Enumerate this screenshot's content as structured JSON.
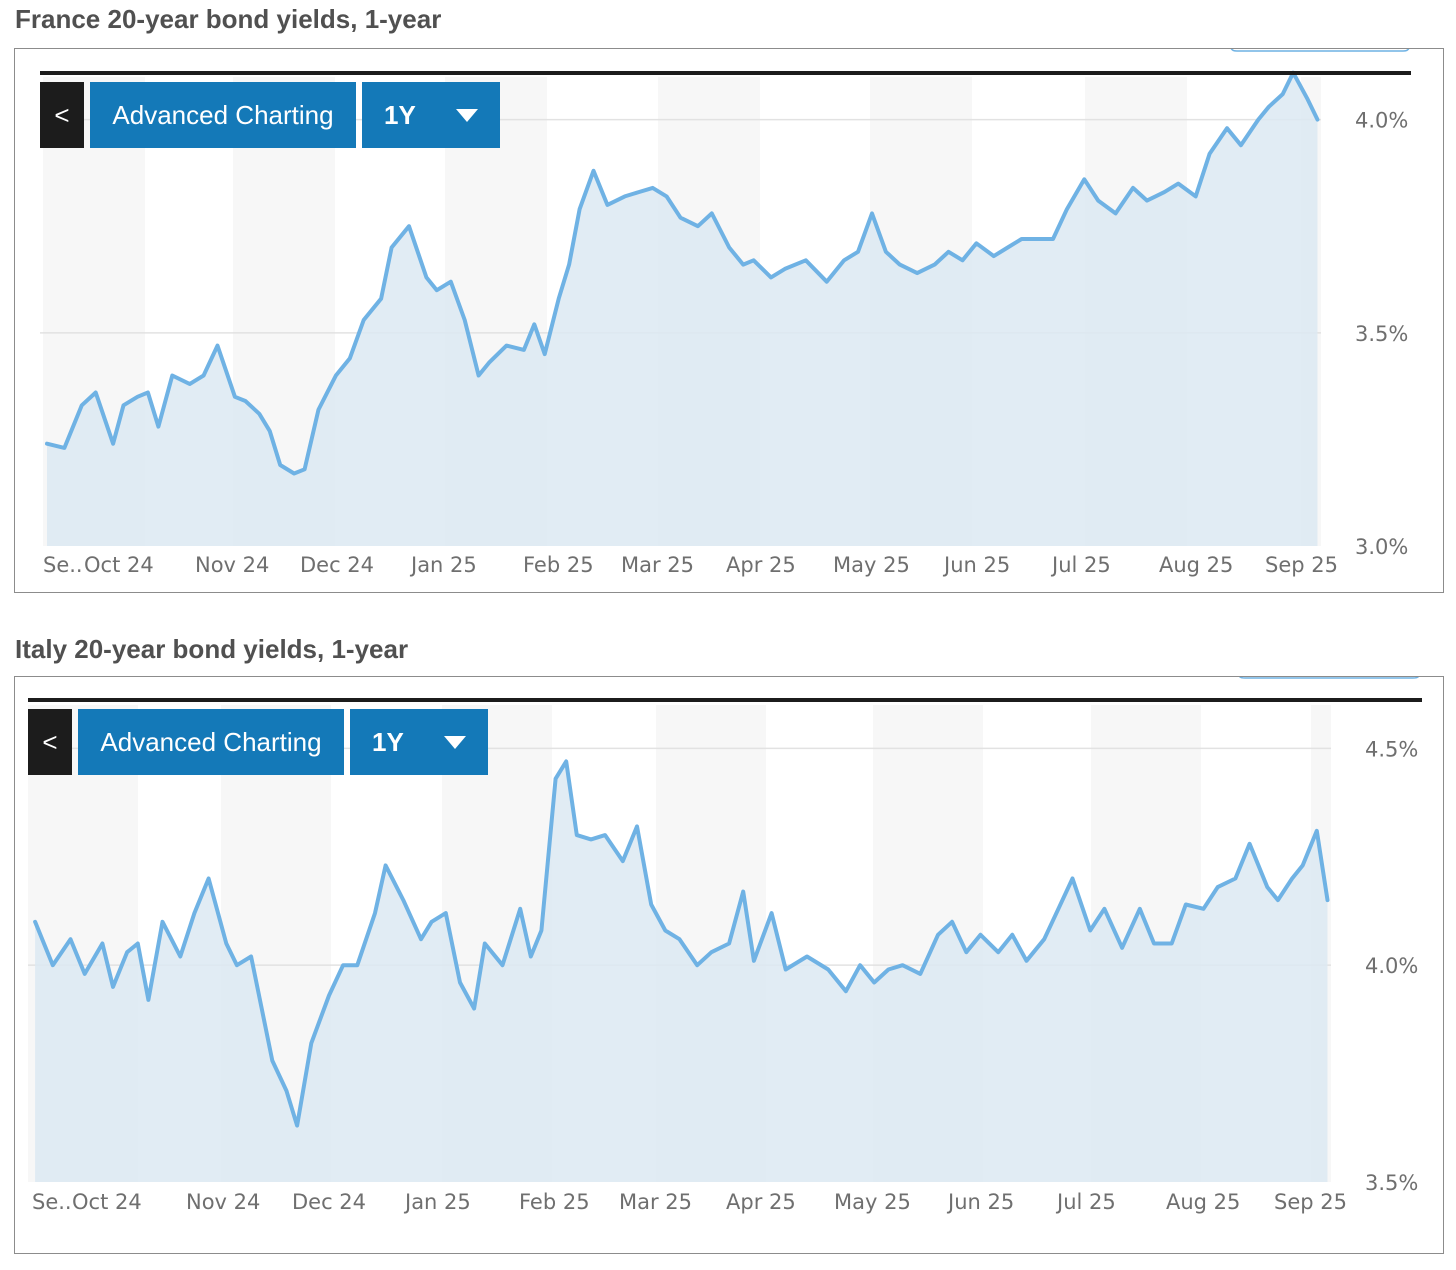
{
  "charts": [
    {
      "title": "France 20-year bond yields, 1-year",
      "toolbar": {
        "back_icon": "chevron-left-icon",
        "back_label": "<",
        "advanced_label": "Advanced Charting",
        "range_label": "1Y",
        "dropdown_icon": "caret-down-icon"
      },
      "colors": {
        "line": "#6fb2e4",
        "fill": "#dce9f2",
        "band": "#f7f7f7",
        "grid": "#e2e2e2",
        "button": "#1479b8",
        "back_button": "#1c1c1c"
      },
      "chart_data": {
        "type": "area",
        "title": "France 20-year bond yields, 1-year",
        "xlabel": "",
        "ylabel": "",
        "x_tick_labels": [
          "Se..",
          "Oct 24",
          "Nov 24",
          "Dec 24",
          "Jan 25",
          "Feb 25",
          "Mar 25",
          "Apr 25",
          "May 25",
          "Jun 25",
          "Jul 25",
          "Aug 25",
          "Sep 25"
        ],
        "y_ticks": [
          3.0,
          3.5,
          4.0
        ],
        "y_tick_labels": [
          "3.0%",
          "3.5%",
          "4.0%"
        ],
        "ylim": [
          3.0,
          4.1
        ],
        "grid": true,
        "series": [
          {
            "x": [
              "2024-09-20",
              "2024-09-25",
              "2024-09-30",
              "2024-10-04",
              "2024-10-09",
              "2024-10-12",
              "2024-10-16",
              "2024-10-19",
              "2024-10-22",
              "2024-10-26",
              "2024-10-31",
              "2024-11-04",
              "2024-11-08",
              "2024-11-13",
              "2024-11-16",
              "2024-11-20",
              "2024-11-23",
              "2024-11-26",
              "2024-11-30",
              "2024-12-03",
              "2024-12-07",
              "2024-12-12",
              "2024-12-16",
              "2024-12-20",
              "2024-12-25",
              "2024-12-28",
              "2025-01-02",
              "2025-01-07",
              "2025-01-10",
              "2025-01-14",
              "2025-01-18",
              "2025-01-22",
              "2025-01-25",
              "2025-01-30",
              "2025-02-04",
              "2025-02-07",
              "2025-02-10",
              "2025-02-14",
              "2025-02-17",
              "2025-02-20",
              "2025-02-24",
              "2025-02-28",
              "2025-03-05",
              "2025-03-09",
              "2025-03-13",
              "2025-03-17",
              "2025-03-21",
              "2025-03-26",
              "2025-03-30",
              "2025-04-04",
              "2025-04-08",
              "2025-04-11",
              "2025-04-16",
              "2025-04-20",
              "2025-04-26",
              "2025-05-02",
              "2025-05-07",
              "2025-05-11",
              "2025-05-15",
              "2025-05-19",
              "2025-05-23",
              "2025-05-28",
              "2025-06-02",
              "2025-06-06",
              "2025-06-10",
              "2025-06-14",
              "2025-06-19",
              "2025-06-23",
              "2025-06-27",
              "2025-07-02",
              "2025-07-06",
              "2025-07-10",
              "2025-07-15",
              "2025-07-19",
              "2025-07-24",
              "2025-07-29",
              "2025-08-02",
              "2025-08-07",
              "2025-08-11",
              "2025-08-16",
              "2025-08-20",
              "2025-08-25",
              "2025-08-29",
              "2025-09-03",
              "2025-09-06",
              "2025-09-10",
              "2025-09-13",
              "2025-09-17",
              "2025-09-20"
            ],
            "values": [
              3.24,
              3.23,
              3.33,
              3.36,
              3.24,
              3.33,
              3.35,
              3.36,
              3.28,
              3.4,
              3.38,
              3.4,
              3.47,
              3.35,
              3.34,
              3.31,
              3.27,
              3.19,
              3.17,
              3.18,
              3.32,
              3.4,
              3.44,
              3.53,
              3.58,
              3.7,
              3.75,
              3.63,
              3.6,
              3.62,
              3.53,
              3.4,
              3.43,
              3.47,
              3.46,
              3.52,
              3.45,
              3.58,
              3.66,
              3.79,
              3.88,
              3.8,
              3.82,
              3.83,
              3.84,
              3.82,
              3.77,
              3.75,
              3.78,
              3.7,
              3.66,
              3.67,
              3.63,
              3.65,
              3.67,
              3.62,
              3.67,
              3.69,
              3.78,
              3.69,
              3.66,
              3.64,
              3.66,
              3.69,
              3.67,
              3.71,
              3.68,
              3.7,
              3.72,
              3.72,
              3.72,
              3.79,
              3.86,
              3.81,
              3.78,
              3.84,
              3.81,
              3.83,
              3.85,
              3.82,
              3.92,
              3.98,
              3.94,
              4.0,
              4.03,
              4.06,
              4.11,
              4.05,
              4.0
            ]
          }
        ]
      }
    },
    {
      "title": "Italy 20-year bond yields, 1-year",
      "toolbar": {
        "back_icon": "chevron-left-icon",
        "back_label": "<",
        "advanced_label": "Advanced Charting",
        "range_label": "1Y",
        "dropdown_icon": "caret-down-icon"
      },
      "colors": {
        "line": "#6fb2e4",
        "fill": "#dce9f2",
        "band": "#f7f7f7",
        "grid": "#e2e2e2",
        "button": "#1479b8",
        "back_button": "#1c1c1c"
      },
      "chart_data": {
        "type": "area",
        "title": "Italy 20-year bond yields, 1-year",
        "xlabel": "",
        "ylabel": "",
        "x_tick_labels": [
          "Se..",
          "Oct 24",
          "Nov 24",
          "Dec 24",
          "Jan 25",
          "Feb 25",
          "Mar 25",
          "Apr 25",
          "May 25",
          "Jun 25",
          "Jul 25",
          "Aug 25",
          "Sep 25"
        ],
        "y_ticks": [
          3.5,
          4.0,
          4.5
        ],
        "y_tick_labels": [
          "3.5%",
          "4.0%",
          "4.5%"
        ],
        "ylim": [
          3.5,
          4.6
        ],
        "grid": true,
        "series": [
          {
            "x": [
              "2024-09-20",
              "2024-09-25",
              "2024-09-30",
              "2024-10-04",
              "2024-10-09",
              "2024-10-12",
              "2024-10-16",
              "2024-10-19",
              "2024-10-22",
              "2024-10-26",
              "2024-10-31",
              "2024-11-04",
              "2024-11-08",
              "2024-11-13",
              "2024-11-16",
              "2024-11-20",
              "2024-11-23",
              "2024-11-26",
              "2024-11-30",
              "2024-12-03",
              "2024-12-07",
              "2024-12-12",
              "2024-12-16",
              "2024-12-20",
              "2024-12-25",
              "2024-12-28",
              "2025-01-02",
              "2025-01-07",
              "2025-01-10",
              "2025-01-14",
              "2025-01-18",
              "2025-01-22",
              "2025-01-25",
              "2025-01-30",
              "2025-02-04",
              "2025-02-07",
              "2025-02-10",
              "2025-02-14",
              "2025-02-17",
              "2025-02-20",
              "2025-02-24",
              "2025-02-28",
              "2025-03-05",
              "2025-03-09",
              "2025-03-13",
              "2025-03-17",
              "2025-03-21",
              "2025-03-26",
              "2025-03-30",
              "2025-04-04",
              "2025-04-08",
              "2025-04-11",
              "2025-04-16",
              "2025-04-20",
              "2025-04-26",
              "2025-05-02",
              "2025-05-07",
              "2025-05-11",
              "2025-05-15",
              "2025-05-19",
              "2025-05-23",
              "2025-05-28",
              "2025-06-02",
              "2025-06-06",
              "2025-06-10",
              "2025-06-14",
              "2025-06-19",
              "2025-06-23",
              "2025-06-27",
              "2025-07-02",
              "2025-07-06",
              "2025-07-10",
              "2025-07-15",
              "2025-07-19",
              "2025-07-24",
              "2025-07-29",
              "2025-08-02",
              "2025-08-07",
              "2025-08-11",
              "2025-08-16",
              "2025-08-20",
              "2025-08-25",
              "2025-08-29",
              "2025-09-03",
              "2025-09-06",
              "2025-09-10",
              "2025-09-13",
              "2025-09-17",
              "2025-09-20"
            ],
            "values": [
              4.1,
              4.0,
              4.06,
              3.98,
              4.05,
              3.95,
              4.03,
              4.05,
              3.92,
              4.1,
              4.02,
              4.12,
              4.2,
              4.05,
              4.0,
              4.02,
              3.9,
              3.78,
              3.71,
              3.63,
              3.82,
              3.93,
              4.0,
              4.0,
              4.12,
              4.23,
              4.15,
              4.06,
              4.1,
              4.12,
              3.96,
              3.9,
              4.05,
              4.0,
              4.13,
              4.02,
              4.08,
              4.43,
              4.47,
              4.3,
              4.29,
              4.3,
              4.24,
              4.32,
              4.14,
              4.08,
              4.06,
              4.0,
              4.03,
              4.05,
              4.17,
              4.01,
              4.12,
              3.99,
              4.02,
              3.99,
              3.94,
              4.0,
              3.96,
              3.99,
              4.0,
              3.98,
              4.07,
              4.1,
              4.03,
              4.07,
              4.03,
              4.07,
              4.01,
              4.06,
              4.13,
              4.2,
              4.08,
              4.13,
              4.04,
              4.13,
              4.05,
              4.05,
              4.14,
              4.13,
              4.18,
              4.2,
              4.28,
              4.18,
              4.15,
              4.2,
              4.23,
              4.31,
              4.15
            ]
          }
        ]
      }
    }
  ]
}
